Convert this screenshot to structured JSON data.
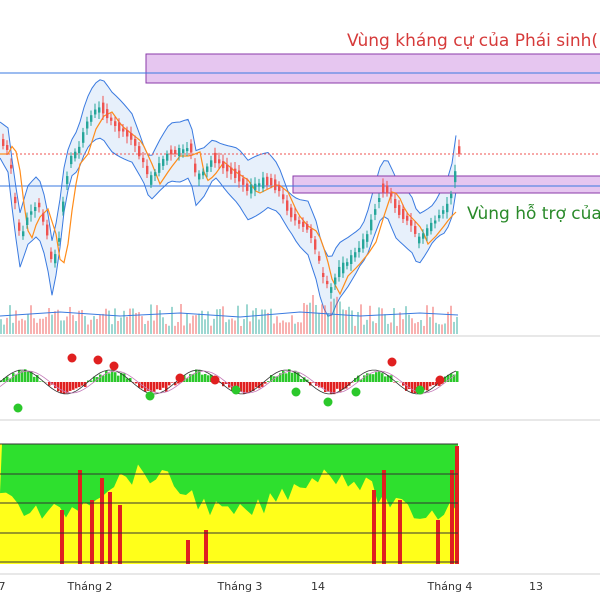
{
  "chart_data": {
    "type": "line",
    "annotations": {
      "resistance_label": "Vùng kháng cự của Phái sinh(",
      "support_label": "Vùng hỗ trợ của"
    },
    "x_axis_labels": [
      "7",
      "Tháng 2",
      "Tháng 3",
      "14",
      "Tháng 4",
      "13"
    ],
    "colors": {
      "resistance_text": "#d63a3a",
      "support_text": "#2a8a2a",
      "zone_fill": "#e6c6f0",
      "zone_border": "#8a3aa8",
      "level_line": "#3a7ae0",
      "bollinger": "#3a7ae0",
      "bollinger_fill": "#cfe2f7",
      "candle_up": "#26a69a",
      "candle_down": "#ef5350",
      "ma_line": "#ff8c1a",
      "osc_up": "#2bc82b",
      "osc_down": "#e02020",
      "heat_green": "#2ee02e",
      "heat_yellow": "#ffff1a",
      "heat_red": "#e02020"
    },
    "panels": [
      "price",
      "oscillator",
      "heatmap"
    ],
    "grid": false
  }
}
